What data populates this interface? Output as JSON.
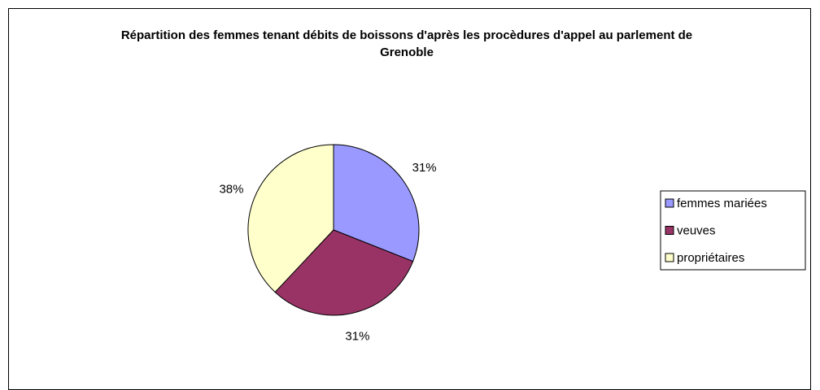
{
  "chart_data": {
    "type": "pie",
    "title": "Répartition des femmes tenant débits de boissons d'après les procèdures d'appel au parlement de Grenoble",
    "categories": [
      "femmes mariées",
      "veuves",
      "propriétaires"
    ],
    "values": [
      31,
      31,
      38
    ],
    "value_labels": [
      "31%",
      "31%",
      "38%"
    ],
    "colors": [
      "#9999ff",
      "#993366",
      "#ffffcc"
    ],
    "legend": "right"
  }
}
